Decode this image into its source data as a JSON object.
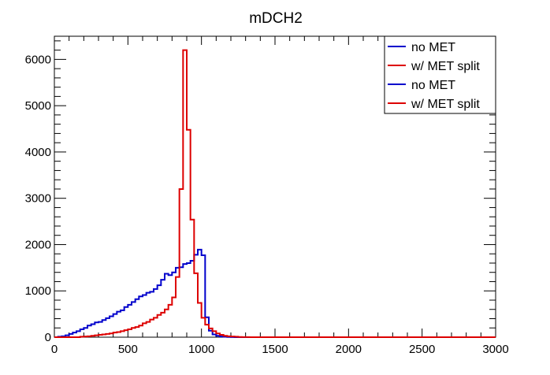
{
  "chart_data": {
    "type": "line",
    "title": "mDCH2",
    "xlabel": "",
    "ylabel": "",
    "xlim": [
      0,
      3000
    ],
    "ylim": [
      0,
      6500
    ],
    "x_ticks": [
      "0",
      "500",
      "1000",
      "1500",
      "2000",
      "2500",
      "3000"
    ],
    "y_ticks": [
      "0",
      "1000",
      "2000",
      "3000",
      "4000",
      "5000",
      "6000"
    ],
    "grid": false,
    "legend_position": "top-right",
    "legend": [
      {
        "name": "no MET",
        "color": "#0000cc"
      },
      {
        "name": "w/ MET split",
        "color": "#dd0000"
      },
      {
        "name": "no MET",
        "color": "#0000cc"
      },
      {
        "name": "w/ MET split",
        "color": "#dd0000"
      }
    ],
    "bin_width": 25,
    "series": [
      {
        "name": "no MET",
        "color": "#0000cc",
        "x": [
          0,
          25,
          50,
          75,
          100,
          125,
          150,
          175,
          200,
          225,
          250,
          275,
          300,
          325,
          350,
          375,
          400,
          425,
          450,
          475,
          500,
          525,
          550,
          575,
          600,
          625,
          650,
          675,
          700,
          725,
          750,
          775,
          800,
          825,
          850,
          875,
          900,
          925,
          950,
          975,
          1000,
          1025,
          1050,
          1075,
          1100,
          1125,
          1150,
          1175,
          1200,
          1225,
          1250,
          1275,
          1300,
          1325,
          1350,
          1375,
          1400,
          1425,
          1450,
          1475,
          1500
        ],
        "values": [
          0,
          10,
          20,
          40,
          70,
          100,
          130,
          170,
          200,
          250,
          280,
          320,
          330,
          370,
          410,
          450,
          500,
          550,
          580,
          650,
          700,
          760,
          820,
          880,
          910,
          960,
          980,
          1040,
          1120,
          1240,
          1370,
          1340,
          1400,
          1500,
          1510,
          1580,
          1600,
          1650,
          1780,
          1890,
          1770,
          430,
          140,
          60,
          30,
          15,
          8,
          4,
          2,
          1,
          0,
          0,
          0,
          0,
          0,
          0,
          0,
          0,
          0,
          0,
          0
        ]
      },
      {
        "name": "w/ MET split",
        "color": "#dd0000",
        "x": [
          0,
          25,
          50,
          75,
          100,
          125,
          150,
          175,
          200,
          225,
          250,
          275,
          300,
          325,
          350,
          375,
          400,
          425,
          450,
          475,
          500,
          525,
          550,
          575,
          600,
          625,
          650,
          675,
          700,
          725,
          750,
          775,
          800,
          825,
          850,
          875,
          900,
          925,
          950,
          975,
          1000,
          1025,
          1050,
          1075,
          1100,
          1125,
          1150,
          1175,
          1200,
          1225,
          1250,
          1275,
          1300,
          1325,
          1350,
          1375,
          1400,
          1425,
          1450,
          1475,
          1500
        ],
        "values": [
          0,
          0,
          0,
          0,
          0,
          0,
          0,
          10,
          15,
          20,
          30,
          40,
          50,
          60,
          70,
          80,
          100,
          110,
          130,
          150,
          170,
          200,
          220,
          250,
          300,
          330,
          380,
          420,
          480,
          530,
          600,
          700,
          860,
          1300,
          3200,
          6200,
          4480,
          2540,
          1380,
          740,
          420,
          270,
          190,
          130,
          80,
          50,
          30,
          20,
          15,
          10,
          5,
          3,
          2,
          1,
          0,
          0,
          0,
          0,
          0,
          0,
          0
        ]
      }
    ]
  }
}
